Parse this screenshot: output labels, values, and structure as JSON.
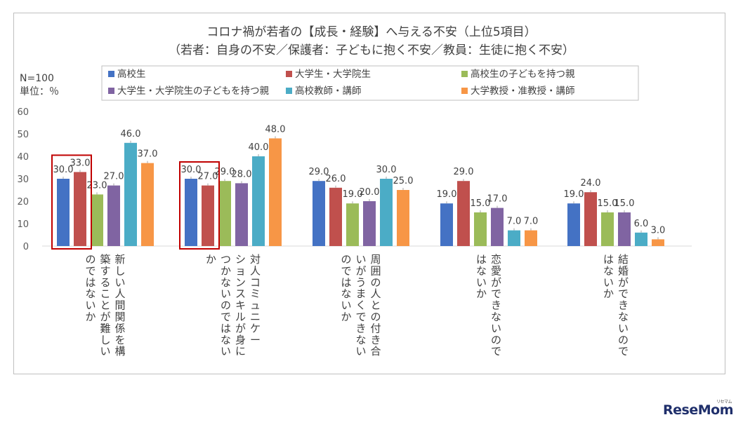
{
  "chart_data": {
    "type": "bar",
    "title": "コロナ禍が若者の【成長・経験】へ与える不安（上位5項目）",
    "subtitle": "（若者：自身の不安／保護者：子どもに抱く不安／教員：生徒に抱く不安）",
    "sample_size": "N=100",
    "unit_label": "単位：％",
    "ylim": [
      0,
      60
    ],
    "y_ticks": [
      "0",
      "10",
      "20",
      "30",
      "40",
      "50",
      "60"
    ],
    "categories": [
      "新しい人間関係を構築することが難しいのではないか",
      "対人コミュニケーションスキルが身につかないのではないか",
      "周囲の人との付き合いがうまくできないのではないか",
      "恋愛ができないのではないか",
      "結婚ができないのではないか"
    ],
    "category_columns": [
      [
        "新しい人間関係を構",
        "築することが難しい",
        "のではないか"
      ],
      [
        "対人コミュニケー",
        "ションスキルが身に",
        "つかないのではない",
        "か"
      ],
      [
        "周囲の人との付き合",
        "いがうまくできない",
        "のではないか"
      ],
      [
        "恋愛ができないので",
        "はないか"
      ],
      [
        "結婚ができないので",
        "はないか"
      ]
    ],
    "series": [
      {
        "name": "高校生",
        "color": "#4472c4",
        "values": [
          30.0,
          30.0,
          29.0,
          19.0,
          19.0
        ],
        "labels": [
          "30.0",
          "30.0",
          "29.0",
          "19.0",
          "19.0"
        ]
      },
      {
        "name": "大学生・大学院生",
        "color": "#c0504d",
        "values": [
          33.0,
          27.0,
          26.0,
          29.0,
          24.0
        ],
        "labels": [
          "33.0",
          "27.0",
          "26.0",
          "29.0",
          "24.0"
        ]
      },
      {
        "name": "高校生の子どもを持つ親",
        "color": "#9bbb59",
        "values": [
          23.0,
          29.0,
          19.0,
          15.0,
          15.0
        ],
        "labels": [
          "23.0",
          "29.0",
          "19.0",
          "15.0",
          "15.0"
        ]
      },
      {
        "name": "大学生・大学院生の子どもを持つ親",
        "color": "#8064a2",
        "values": [
          27.0,
          28.0,
          20.0,
          17.0,
          15.0
        ],
        "labels": [
          "27.0",
          "28.0",
          "20.0",
          "17.0",
          "15.0"
        ]
      },
      {
        "name": "高校教師・講師",
        "color": "#4bacc6",
        "values": [
          46.0,
          40.0,
          30.0,
          7.0,
          6.0
        ],
        "labels": [
          "46.0",
          "40.0",
          "30.0",
          "7.0",
          "6.0"
        ]
      },
      {
        "name": "大学教授・准教授・講師",
        "color": "#f79646",
        "values": [
          37.0,
          48.0,
          25.0,
          7.0,
          3.0
        ],
        "labels": [
          "37.0",
          "48.0",
          "25.0",
          "7.0",
          "3.0"
        ]
      }
    ],
    "highlight_categories": [
      0,
      1
    ],
    "highlight_color": "#c00000",
    "legend_position": "top"
  },
  "watermark": "ReseMom",
  "watermark_small": "リセマム"
}
